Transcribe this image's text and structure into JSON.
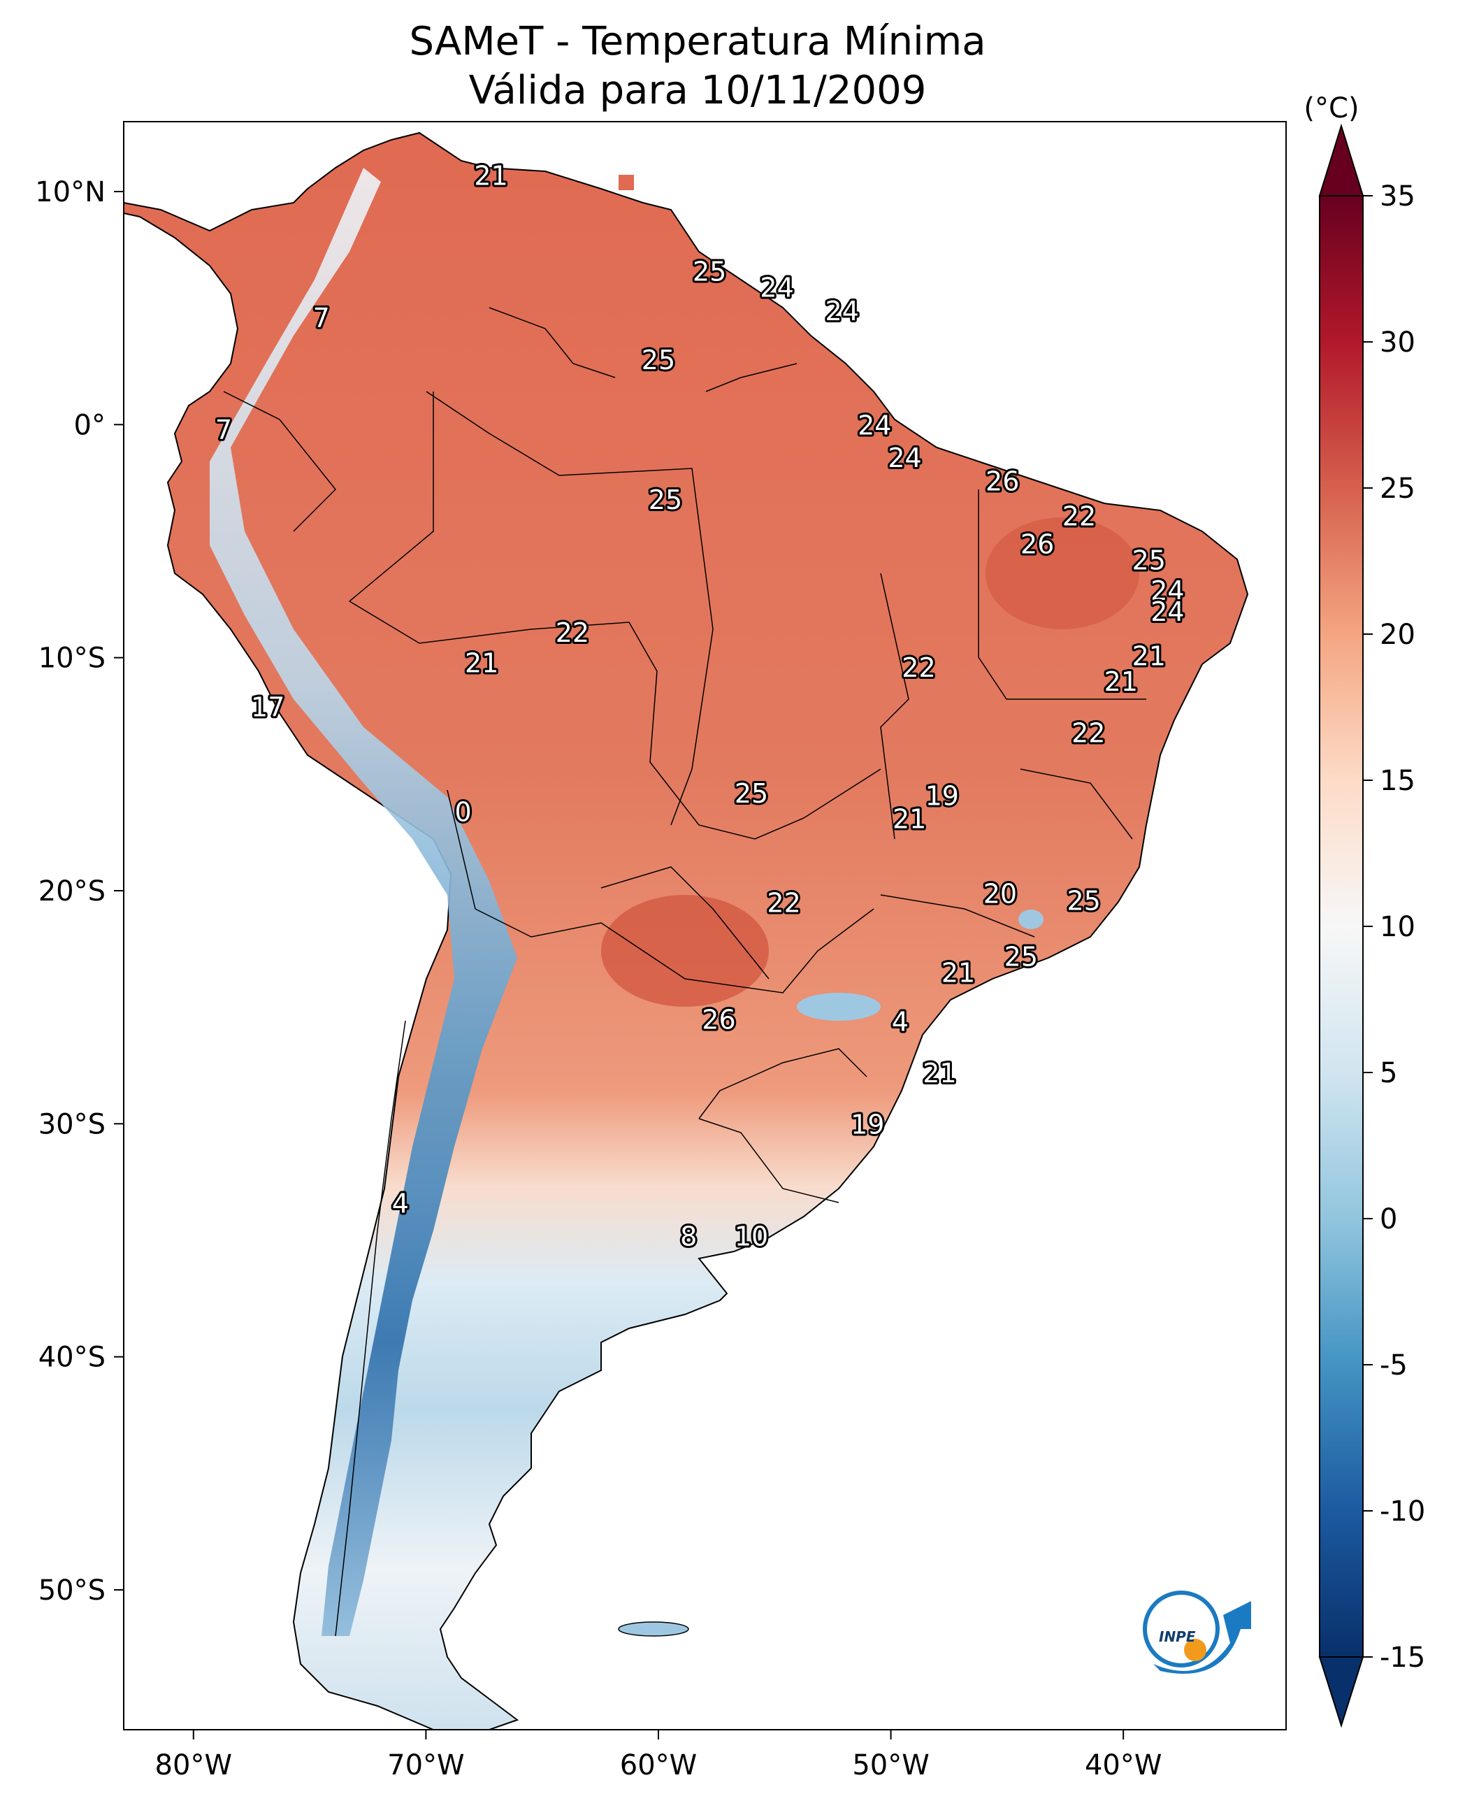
{
  "title_line1": "SAMeT - Temperatura Mínima",
  "title_line2": "Válida para 10/11/2009",
  "colorbar": {
    "unit_label": "(°C)",
    "min": -15,
    "max": 35,
    "tick_labels": [
      "35",
      "30",
      "25",
      "20",
      "15",
      "10",
      "5",
      "0",
      "-5",
      "-10",
      "-15"
    ],
    "tick_values": [
      35,
      30,
      25,
      20,
      15,
      10,
      5,
      0,
      -5,
      -10,
      -15
    ],
    "colors": [
      "#08306b",
      "#2166ac",
      "#4393c3",
      "#92c5de",
      "#d1e5f0",
      "#f7f7f7",
      "#fddbc7",
      "#f4a582",
      "#d6604d",
      "#b2182b",
      "#67001f"
    ]
  },
  "axes": {
    "lon_labels": [
      "80°W",
      "70°W",
      "60°W",
      "50°W",
      "40°W"
    ],
    "lon_values": [
      -80,
      -70,
      -60,
      -50,
      -40
    ],
    "lat_labels": [
      "10°N",
      "0°",
      "10°S",
      "20°S",
      "30°S",
      "40°S",
      "50°S"
    ],
    "lat_values": [
      10,
      0,
      -10,
      -20,
      -30,
      -40,
      -50
    ],
    "lon_range": [
      -83,
      -33
    ],
    "lat_range": [
      -56,
      13
    ]
  },
  "temperature_labels": [
    {
      "text": "21",
      "lon": -67.2,
      "lat": 10.7
    },
    {
      "text": "25",
      "lon": -57.8,
      "lat": 6.6
    },
    {
      "text": "24",
      "lon": -54.9,
      "lat": 5.9
    },
    {
      "text": "24",
      "lon": -52.1,
      "lat": 4.9
    },
    {
      "text": "7",
      "lon": -74.5,
      "lat": 4.6
    },
    {
      "text": "25",
      "lon": -60.0,
      "lat": 2.8
    },
    {
      "text": "7",
      "lon": -78.7,
      "lat": -0.2
    },
    {
      "text": "24",
      "lon": -50.7,
      "lat": 0.0
    },
    {
      "text": "24",
      "lon": -49.4,
      "lat": -1.4
    },
    {
      "text": "26",
      "lon": -45.2,
      "lat": -2.4
    },
    {
      "text": "25",
      "lon": -59.7,
      "lat": -3.2
    },
    {
      "text": "22",
      "lon": -41.9,
      "lat": -3.9
    },
    {
      "text": "26",
      "lon": -43.7,
      "lat": -5.1
    },
    {
      "text": "25",
      "lon": -38.9,
      "lat": -5.8
    },
    {
      "text": "24",
      "lon": -38.1,
      "lat": -7.1
    },
    {
      "text": "24",
      "lon": -38.1,
      "lat": -8.0
    },
    {
      "text": "22",
      "lon": -63.7,
      "lat": -8.9
    },
    {
      "text": "21",
      "lon": -67.6,
      "lat": -10.2
    },
    {
      "text": "22",
      "lon": -48.8,
      "lat": -10.4
    },
    {
      "text": "21",
      "lon": -38.9,
      "lat": -9.9
    },
    {
      "text": "21",
      "lon": -40.1,
      "lat": -11.0
    },
    {
      "text": "17",
      "lon": -76.8,
      "lat": -12.1
    },
    {
      "text": "22",
      "lon": -41.5,
      "lat": -13.2
    },
    {
      "text": "25",
      "lon": -56.0,
      "lat": -15.8
    },
    {
      "text": "19",
      "lon": -47.8,
      "lat": -15.9
    },
    {
      "text": "0",
      "lon": -68.4,
      "lat": -16.6
    },
    {
      "text": "21",
      "lon": -49.2,
      "lat": -16.9
    },
    {
      "text": "20",
      "lon": -45.3,
      "lat": -20.1
    },
    {
      "text": "25",
      "lon": -41.7,
      "lat": -20.4
    },
    {
      "text": "22",
      "lon": -54.6,
      "lat": -20.5
    },
    {
      "text": "25",
      "lon": -44.4,
      "lat": -22.8
    },
    {
      "text": "21",
      "lon": -47.1,
      "lat": -23.5
    },
    {
      "text": "26",
      "lon": -57.4,
      "lat": -25.5
    },
    {
      "text": "4",
      "lon": -49.6,
      "lat": -25.6
    },
    {
      "text": "21",
      "lon": -47.9,
      "lat": -27.8
    },
    {
      "text": "19",
      "lon": -51.0,
      "lat": -30.0
    },
    {
      "text": "4",
      "lon": -71.1,
      "lat": -33.4
    },
    {
      "text": "8",
      "lon": -58.7,
      "lat": -34.8
    },
    {
      "text": "10",
      "lon": -56.0,
      "lat": -34.8
    }
  ],
  "logo_text": "INPE"
}
